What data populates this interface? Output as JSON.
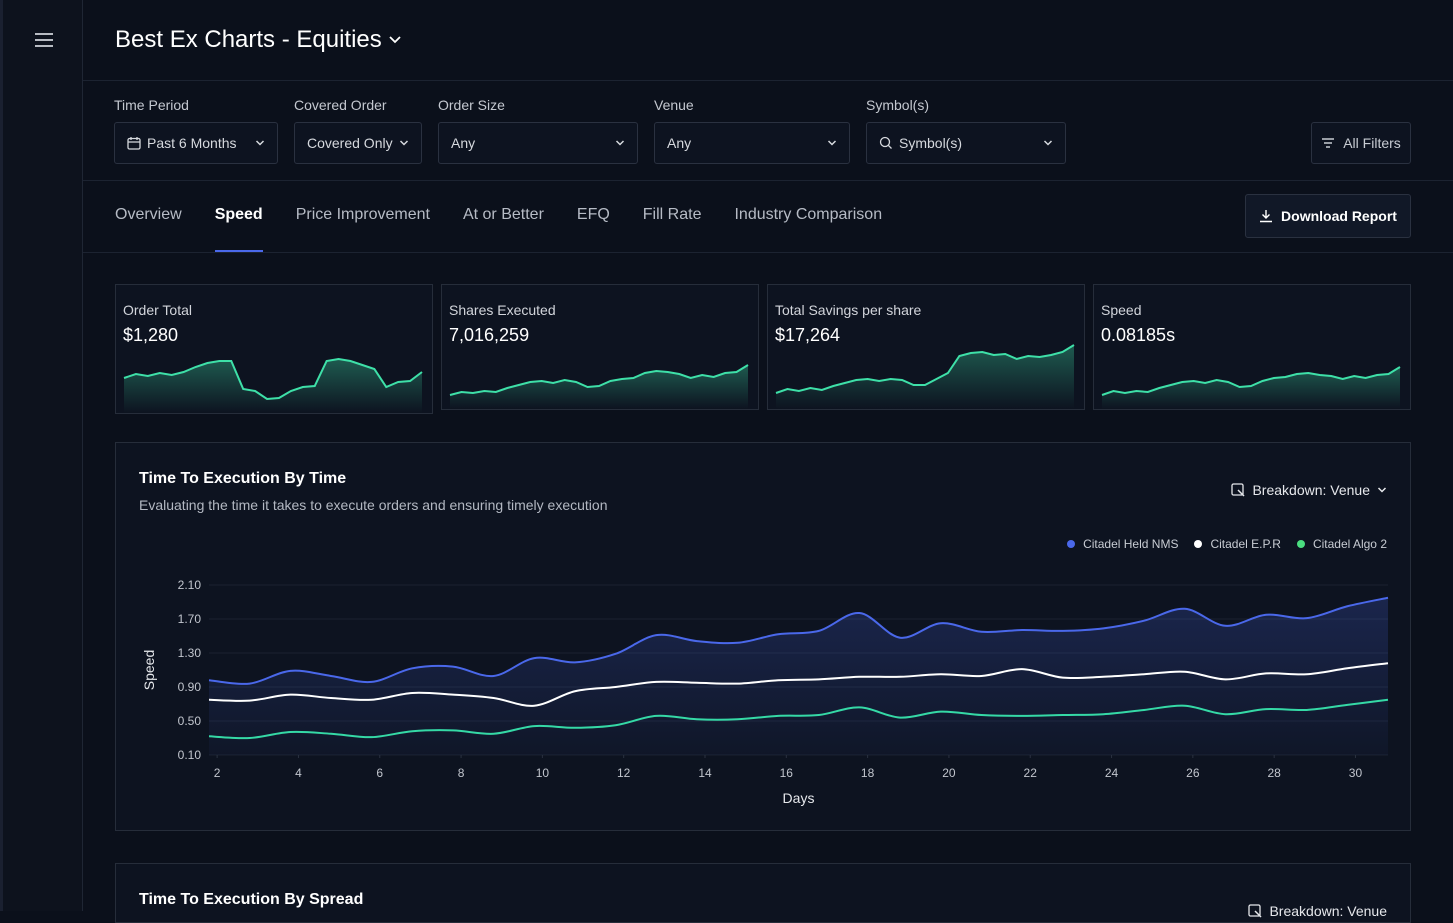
{
  "header": {
    "title": "Best Ex Charts - Equities"
  },
  "filters": [
    {
      "label": "Time Period",
      "value": "Past 6 Months"
    },
    {
      "label": "Covered Order",
      "value": "Covered Only"
    },
    {
      "label": "Order Size",
      "value": "Any"
    },
    {
      "label": "Venue",
      "value": "Any"
    },
    {
      "label": "Symbol(s)",
      "value": "Symbol(s)"
    }
  ],
  "all_filters": "All Filters",
  "tabs": [
    "Overview",
    "Speed",
    "Price Improvement",
    "At or Better",
    "EFQ",
    "Fill Rate",
    "Industry Comparison"
  ],
  "download_button": "Download Report",
  "kpis": [
    {
      "label": "Order Total",
      "value": "$1,280",
      "sparkline": [
        23,
        27,
        25,
        28,
        26,
        29,
        34,
        38,
        40,
        40,
        12,
        10,
        2,
        3,
        10,
        14,
        15,
        40,
        42,
        40,
        36,
        32,
        14,
        19,
        20,
        29
      ],
      "color": "#3ee0a8"
    },
    {
      "label": "Shares Executed",
      "value": "7,016,259",
      "sparkline": [
        6,
        9,
        8,
        10,
        9,
        13,
        16,
        19,
        20,
        18,
        21,
        19,
        14,
        15,
        20,
        22,
        23,
        28,
        30,
        29,
        27,
        23,
        26,
        24,
        28,
        29,
        36
      ],
      "color": "#3ee0a8"
    },
    {
      "label": "Total Savings per share",
      "value": "$17,264",
      "sparkline": [
        8,
        12,
        10,
        13,
        11,
        15,
        18,
        21,
        22,
        20,
        22,
        21,
        16,
        16,
        22,
        28,
        45,
        48,
        49,
        46,
        47,
        42,
        45,
        44,
        46,
        49,
        56
      ],
      "color": "#3ee0a8"
    },
    {
      "label": "Speed",
      "value": "0.08185s",
      "sparkline": [
        6,
        10,
        8,
        10,
        9,
        13,
        16,
        19,
        20,
        18,
        21,
        19,
        14,
        15,
        20,
        23,
        24,
        27,
        28,
        26,
        25,
        22,
        25,
        23,
        26,
        27,
        34
      ],
      "color": "#3ee0a8"
    }
  ],
  "chart_data": {
    "type": "line",
    "title": "Time To Execution By Time",
    "subtitle": "Evaluating the time it takes to execute orders and ensuring timely execution",
    "breakdown": "Breakdown: Venue",
    "xlabel": "Days",
    "ylabel": "Speed",
    "legend": "top-right",
    "grid": true,
    "x": [
      1.8,
      2.8,
      3.8,
      4.8,
      5.8,
      6.8,
      7.8,
      8.8,
      9.8,
      10.8,
      11.8,
      12.8,
      13.8,
      14.8,
      15.8,
      16.8,
      17.8,
      18.8,
      19.8,
      20.8,
      21.8,
      22.8,
      23.8,
      24.8,
      25.8,
      26.8,
      27.8,
      28.8,
      29.8,
      30.8
    ],
    "xlim": [
      1.8,
      30.8
    ],
    "xticks": [
      2,
      4,
      6,
      8,
      10,
      12,
      14,
      16,
      18,
      20,
      22,
      24,
      26,
      28,
      30
    ],
    "ylim": [
      0.1,
      2.1
    ],
    "yticks": [
      {
        "value": 2.1,
        "label": "2.10"
      },
      {
        "value": 1.7,
        "label": "1.70"
      },
      {
        "value": 1.3,
        "label": "1.30"
      },
      {
        "value": 0.9,
        "label": "0.90"
      },
      {
        "value": 0.5,
        "label": "0.50"
      },
      {
        "value": 0.1,
        "label": "0.10"
      }
    ],
    "series": [
      {
        "name": "Citadel Held NMS",
        "color": "#4a68ea",
        "legend_color": "#4a68ea",
        "area": true,
        "values": [
          0.98,
          0.94,
          1.09,
          1.03,
          0.96,
          1.12,
          1.14,
          1.03,
          1.24,
          1.19,
          1.29,
          1.51,
          1.44,
          1.42,
          1.52,
          1.56,
          1.77,
          1.48,
          1.65,
          1.55,
          1.57,
          1.56,
          1.59,
          1.68,
          1.82,
          1.62,
          1.75,
          1.71,
          1.85,
          1.95
        ]
      },
      {
        "name": "Citadel E.P.R",
        "color": "#ffffff",
        "legend_color": "#ffffff",
        "area": false,
        "values": [
          0.75,
          0.74,
          0.81,
          0.77,
          0.75,
          0.83,
          0.81,
          0.77,
          0.68,
          0.85,
          0.9,
          0.96,
          0.95,
          0.94,
          0.98,
          0.99,
          1.02,
          1.02,
          1.05,
          1.03,
          1.11,
          1.01,
          1.02,
          1.05,
          1.08,
          0.99,
          1.06,
          1.05,
          1.12,
          1.18
        ]
      },
      {
        "name": "Citadel Algo 2",
        "color": "#35d9a6",
        "legend_color": "#4ade80",
        "area": false,
        "values": [
          0.32,
          0.3,
          0.37,
          0.35,
          0.31,
          0.38,
          0.39,
          0.35,
          0.44,
          0.42,
          0.45,
          0.56,
          0.52,
          0.52,
          0.56,
          0.57,
          0.66,
          0.54,
          0.61,
          0.57,
          0.56,
          0.57,
          0.58,
          0.63,
          0.68,
          0.58,
          0.64,
          0.63,
          0.69,
          0.75
        ]
      }
    ]
  },
  "chart_2": {
    "title": "Time To Execution By Spread",
    "breakdown": "Breakdown: Venue"
  }
}
